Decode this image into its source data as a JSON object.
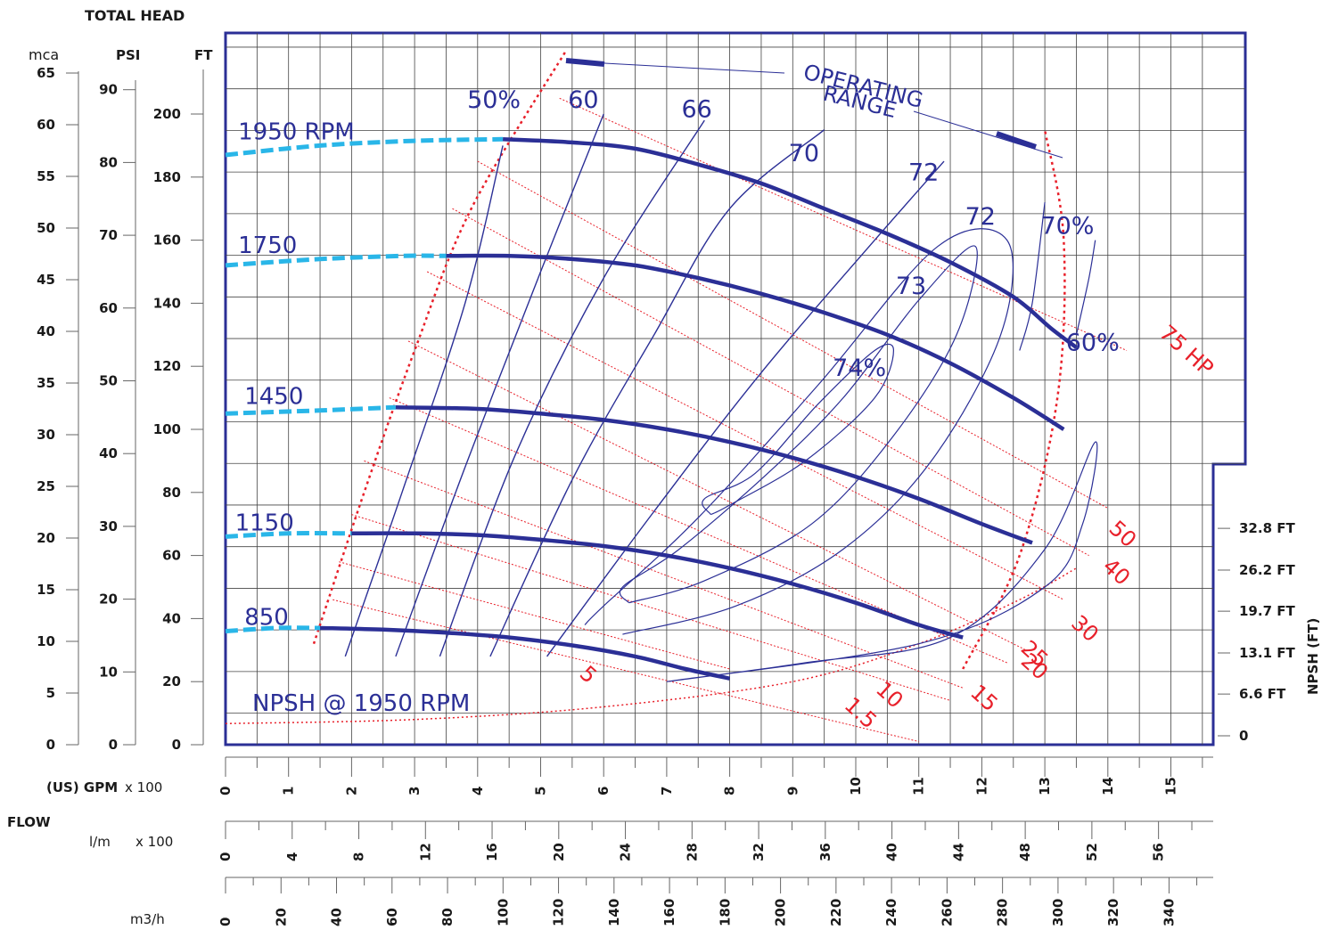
{
  "title": "TOTAL HEAD",
  "chart_data": {
    "type": "line",
    "colors": {
      "frame": "#2b2f96",
      "head": "#2b2f96",
      "shutoff": "#29b6e8",
      "power": "#e8202a",
      "grid": "#444444"
    },
    "y_axes": {
      "mca": {
        "label": "mca",
        "ticks": [
          0,
          5,
          10,
          15,
          20,
          25,
          30,
          35,
          40,
          45,
          50,
          55,
          60,
          65
        ]
      },
      "psi": {
        "label": "PSI",
        "ticks": [
          0,
          10,
          20,
          30,
          40,
          50,
          60,
          70,
          80,
          90
        ]
      },
      "ft": {
        "label": "FT",
        "ticks": [
          0,
          20,
          40,
          60,
          80,
          100,
          120,
          140,
          160,
          180,
          200
        ],
        "ylim": [
          0,
          225
        ]
      }
    },
    "x_axes": {
      "flow_label": "FLOW",
      "gpm": {
        "label": "(US) GPM",
        "mult": "x 100",
        "ticks": [
          0,
          1,
          2,
          3,
          4,
          5,
          6,
          7,
          8,
          9,
          10,
          11,
          12,
          13,
          14,
          15
        ],
        "xlim": [
          0,
          15.6
        ]
      },
      "lpm": {
        "label": "l/m",
        "mult": "x 100",
        "ticks": [
          0,
          4,
          8,
          12,
          16,
          20,
          24,
          28,
          32,
          36,
          40,
          44,
          48,
          52,
          56
        ]
      },
      "m3h": {
        "label": "m3/h",
        "ticks": [
          0,
          20,
          40,
          60,
          80,
          100,
          120,
          140,
          160,
          180,
          200,
          220,
          240,
          260,
          280,
          300,
          320,
          340
        ]
      }
    },
    "npsh_axis": {
      "label": "NPSH (FT)",
      "ticks": [
        {
          "label": "0",
          "value": 0
        },
        {
          "label": "6.6 FT",
          "value": 6.6
        },
        {
          "label": "13.1 FT",
          "value": 13.1
        },
        {
          "label": "19.7 FT",
          "value": 19.7
        },
        {
          "label": "26.2 FT",
          "value": 26.2
        },
        {
          "label": "32.8 FT",
          "value": 32.8
        }
      ]
    },
    "speed_curves": [
      {
        "name": "1950 RPM",
        "shutoff": [
          [
            0,
            187
          ],
          [
            1.5,
            190
          ],
          [
            3,
            191.5
          ],
          [
            4.4,
            192
          ]
        ],
        "points": [
          [
            4.4,
            192
          ],
          [
            5.5,
            191
          ],
          [
            6.5,
            189
          ],
          [
            7.5,
            184
          ],
          [
            8.5,
            178
          ],
          [
            9.5,
            170
          ],
          [
            10.5,
            162
          ],
          [
            11.5,
            153
          ],
          [
            12.5,
            142
          ],
          [
            13.1,
            132
          ],
          [
            13.5,
            126
          ]
        ]
      },
      {
        "name": "1750",
        "shutoff": [
          [
            0,
            152
          ],
          [
            1.5,
            154
          ],
          [
            2.8,
            155
          ],
          [
            3.5,
            155
          ]
        ],
        "points": [
          [
            3.5,
            155
          ],
          [
            4.5,
            155
          ],
          [
            5.5,
            154
          ],
          [
            6.5,
            152
          ],
          [
            7.5,
            148
          ],
          [
            8.5,
            143
          ],
          [
            9.5,
            137
          ],
          [
            10.5,
            130
          ],
          [
            11.5,
            121
          ],
          [
            12.5,
            110
          ],
          [
            13.3,
            100
          ]
        ]
      },
      {
        "name": "1450",
        "shutoff": [
          [
            0,
            105
          ],
          [
            1.5,
            106
          ],
          [
            2.7,
            107
          ]
        ],
        "points": [
          [
            2.7,
            107
          ],
          [
            4,
            106.5
          ],
          [
            5,
            105
          ],
          [
            6,
            103
          ],
          [
            7,
            100
          ],
          [
            8,
            96
          ],
          [
            9,
            91
          ],
          [
            10,
            85
          ],
          [
            11,
            78
          ],
          [
            12,
            70
          ],
          [
            12.8,
            64
          ]
        ]
      },
      {
        "name": "1150",
        "shutoff": [
          [
            0,
            66
          ],
          [
            1,
            67
          ],
          [
            2,
            67
          ]
        ],
        "points": [
          [
            2,
            67
          ],
          [
            3,
            67
          ],
          [
            4,
            66.5
          ],
          [
            5,
            65
          ],
          [
            6,
            63
          ],
          [
            7,
            60
          ],
          [
            8,
            56
          ],
          [
            9,
            51
          ],
          [
            10,
            45
          ],
          [
            11,
            38
          ],
          [
            11.7,
            34
          ]
        ]
      },
      {
        "name": "850",
        "shutoff": [
          [
            0,
            36
          ],
          [
            0.8,
            37
          ],
          [
            1.5,
            37
          ]
        ],
        "points": [
          [
            1.5,
            37
          ],
          [
            2.5,
            36.5
          ],
          [
            3.5,
            35.5
          ],
          [
            4.5,
            34
          ],
          [
            5.5,
            31.5
          ],
          [
            6.5,
            28
          ],
          [
            7.3,
            24
          ],
          [
            8,
            21
          ]
        ]
      }
    ],
    "efficiency_labels": [
      {
        "text": "50%"
      },
      {
        "text": "60"
      },
      {
        "text": "66"
      },
      {
        "text": "70"
      },
      {
        "text": "72"
      },
      {
        "text": "72"
      },
      {
        "text": "70%"
      },
      {
        "text": "73"
      },
      {
        "text": "74%"
      },
      {
        "text": "60%"
      }
    ],
    "efficiency_lines": [
      [
        [
          1.9,
          28
        ],
        [
          2.8,
          80
        ],
        [
          3.8,
          140
        ],
        [
          4.4,
          190
        ]
      ],
      [
        [
          2.7,
          28
        ],
        [
          3.8,
          88
        ],
        [
          5,
          150
        ],
        [
          6,
          200
        ]
      ],
      [
        [
          3.4,
          28
        ],
        [
          4.6,
          92
        ],
        [
          6,
          148
        ],
        [
          7.6,
          198
        ]
      ],
      [
        [
          4.2,
          28
        ],
        [
          5.5,
          84
        ],
        [
          6.8,
          130
        ],
        [
          8,
          170
        ],
        [
          9.5,
          195
        ]
      ],
      [
        [
          5.1,
          28
        ],
        [
          6.8,
          74
        ],
        [
          8.5,
          118
        ],
        [
          10.3,
          160
        ],
        [
          11.4,
          185
        ]
      ]
    ],
    "hp_labels": [
      {
        "text": "1.5"
      },
      {
        "text": "5"
      },
      {
        "text": "10"
      },
      {
        "text": "15"
      },
      {
        "text": "20"
      },
      {
        "text": "25"
      },
      {
        "text": "30"
      },
      {
        "text": "40"
      },
      {
        "text": "50"
      },
      {
        "text": "75 HP"
      }
    ],
    "annotations": {
      "operating_range": [
        "OPERATING",
        "RANGE"
      ],
      "npsh_curve": "NPSH @ 1950 RPM"
    }
  }
}
